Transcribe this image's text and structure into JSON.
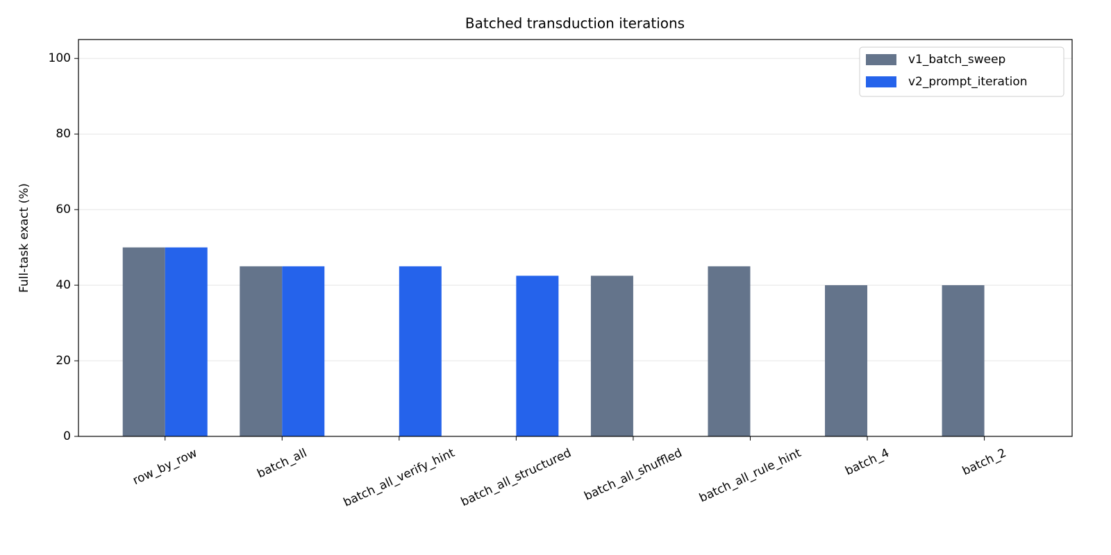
{
  "chart_data": {
    "type": "bar",
    "title": "Batched transduction iterations",
    "y_label": "Full-task exact (%)",
    "categories": [
      "row_by_row",
      "batch_all",
      "batch_all_verify_hint",
      "batch_all_structured",
      "batch_all_shuffled",
      "batch_all_rule_hint",
      "batch_4",
      "batch_2"
    ],
    "series": [
      {
        "name": "v1_batch_sweep",
        "color": "#64748b",
        "values": [
          50,
          45,
          null,
          null,
          42.5,
          45,
          40,
          40
        ]
      },
      {
        "name": "v2_prompt_iteration",
        "color": "#2563eb",
        "values": [
          50,
          45,
          45,
          42.5,
          null,
          null,
          null,
          null
        ]
      }
    ],
    "ylim": [
      0,
      105
    ],
    "yticks": [
      0,
      20,
      40,
      60,
      80,
      100
    ],
    "grid": true,
    "legend": "upper right"
  }
}
